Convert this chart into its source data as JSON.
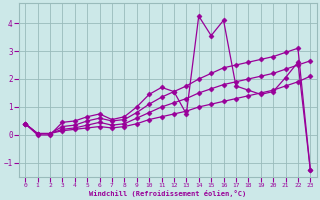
{
  "xlabel": "Windchill (Refroidissement éolien,°C)",
  "ylabel": "",
  "bg_color": "#cce8e8",
  "line_color": "#990099",
  "grid_color": "#99bbbb",
  "xlim": [
    -0.5,
    23.5
  ],
  "ylim": [
    -1.5,
    4.7
  ],
  "yticks": [
    -1,
    0,
    1,
    2,
    3,
    4
  ],
  "xticks": [
    0,
    1,
    2,
    3,
    4,
    5,
    6,
    7,
    8,
    9,
    10,
    11,
    12,
    13,
    14,
    15,
    16,
    17,
    18,
    19,
    20,
    21,
    22,
    23
  ],
  "series": [
    [
      0.4,
      0.05,
      0.05,
      0.15,
      0.2,
      0.25,
      0.3,
      0.25,
      0.3,
      0.4,
      0.55,
      0.65,
      0.75,
      0.85,
      1.0,
      1.1,
      1.2,
      1.3,
      1.4,
      1.5,
      1.6,
      1.75,
      1.9,
      2.1
    ],
    [
      0.4,
      0.05,
      0.05,
      0.2,
      0.25,
      0.35,
      0.45,
      0.35,
      0.4,
      0.6,
      0.8,
      1.0,
      1.15,
      1.3,
      1.5,
      1.65,
      1.8,
      1.9,
      2.0,
      2.1,
      2.2,
      2.35,
      2.5,
      2.65
    ],
    [
      0.4,
      0.05,
      0.05,
      0.3,
      0.35,
      0.5,
      0.6,
      0.5,
      0.55,
      0.8,
      1.1,
      1.35,
      1.55,
      1.75,
      2.0,
      2.2,
      2.4,
      2.5,
      2.6,
      2.7,
      2.8,
      2.95,
      3.1,
      -1.25
    ],
    [
      0.4,
      0.0,
      0.0,
      0.45,
      0.5,
      0.65,
      0.75,
      0.55,
      0.65,
      1.0,
      1.45,
      1.7,
      1.55,
      0.75,
      4.25,
      3.55,
      4.1,
      1.75,
      1.6,
      1.45,
      1.55,
      2.05,
      2.6,
      -1.25
    ]
  ],
  "marker": "D",
  "markersize": 2.5,
  "linewidth": 0.9
}
